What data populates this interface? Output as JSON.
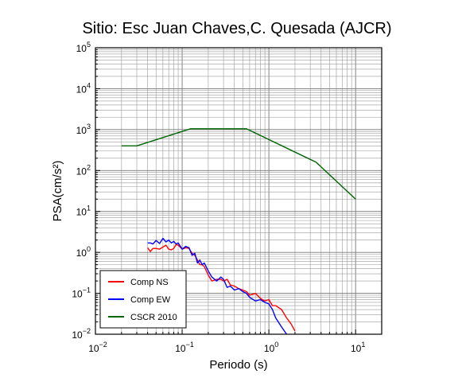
{
  "chart_data": {
    "type": "line",
    "title": "Sitio: Esc Juan Chaves,C. Quesada (AJCR)",
    "xlabel": "Periodo (s)",
    "ylabel": "PSA(cm/s²)",
    "xscale": "log",
    "yscale": "log",
    "xlim": [
      0.01,
      20
    ],
    "ylim": [
      0.01,
      100000
    ],
    "grid": true,
    "x_ticks": [
      0.01,
      0.1,
      1,
      10
    ],
    "y_ticks": [
      0.01,
      0.1,
      1,
      10,
      100,
      1000,
      10000,
      100000
    ],
    "legend_position": "bottom-left",
    "series": [
      {
        "name": "Comp NS",
        "color": "#ff0000",
        "x": [
          0.04,
          0.043,
          0.046,
          0.05,
          0.055,
          0.06,
          0.065,
          0.07,
          0.075,
          0.08,
          0.085,
          0.09,
          0.1,
          0.11,
          0.12,
          0.13,
          0.14,
          0.15,
          0.16,
          0.17,
          0.18,
          0.2,
          0.22,
          0.25,
          0.28,
          0.3,
          0.33,
          0.36,
          0.4,
          0.45,
          0.5,
          0.55,
          0.6,
          0.7,
          0.8,
          0.9,
          1.0,
          1.1,
          1.2,
          1.4,
          1.6,
          1.8,
          2.0
        ],
        "y": [
          1.3,
          1.05,
          1.25,
          1.25,
          1.2,
          1.35,
          1.5,
          1.2,
          1.15,
          1.25,
          1.55,
          1.5,
          1.2,
          1.3,
          1.25,
          0.95,
          0.85,
          0.65,
          0.5,
          0.5,
          0.45,
          0.28,
          0.2,
          0.22,
          0.22,
          0.2,
          0.22,
          0.16,
          0.15,
          0.13,
          0.12,
          0.11,
          0.09,
          0.1,
          0.075,
          0.065,
          0.07,
          0.05,
          0.05,
          0.04,
          0.025,
          0.018,
          0.012
        ]
      },
      {
        "name": "Comp EW",
        "color": "#0000ff",
        "x": [
          0.04,
          0.043,
          0.046,
          0.05,
          0.055,
          0.06,
          0.065,
          0.07,
          0.075,
          0.08,
          0.085,
          0.09,
          0.1,
          0.11,
          0.12,
          0.13,
          0.14,
          0.15,
          0.16,
          0.17,
          0.18,
          0.2,
          0.22,
          0.25,
          0.28,
          0.3,
          0.33,
          0.36,
          0.4,
          0.45,
          0.5,
          0.55,
          0.6,
          0.7,
          0.8,
          0.9,
          1.0,
          1.1,
          1.2,
          1.4,
          1.6,
          1.8,
          2.0
        ],
        "y": [
          1.7,
          1.7,
          1.6,
          1.95,
          1.65,
          2.2,
          1.8,
          2.0,
          1.7,
          1.85,
          1.6,
          1.7,
          1.2,
          1.4,
          1.3,
          0.85,
          0.95,
          0.55,
          0.65,
          0.5,
          0.55,
          0.35,
          0.25,
          0.2,
          0.25,
          0.22,
          0.14,
          0.15,
          0.12,
          0.13,
          0.11,
          0.1,
          0.08,
          0.065,
          0.07,
          0.06,
          0.055,
          0.04,
          0.025,
          0.015,
          0.01,
          0.008,
          0.006
        ]
      },
      {
        "name": "CSCR 2010",
        "color": "#006400",
        "x": [
          0.02,
          0.03,
          0.125,
          0.55,
          3.5,
          10
        ],
        "y": [
          400,
          400,
          1050,
          1050,
          160,
          20
        ]
      }
    ]
  }
}
